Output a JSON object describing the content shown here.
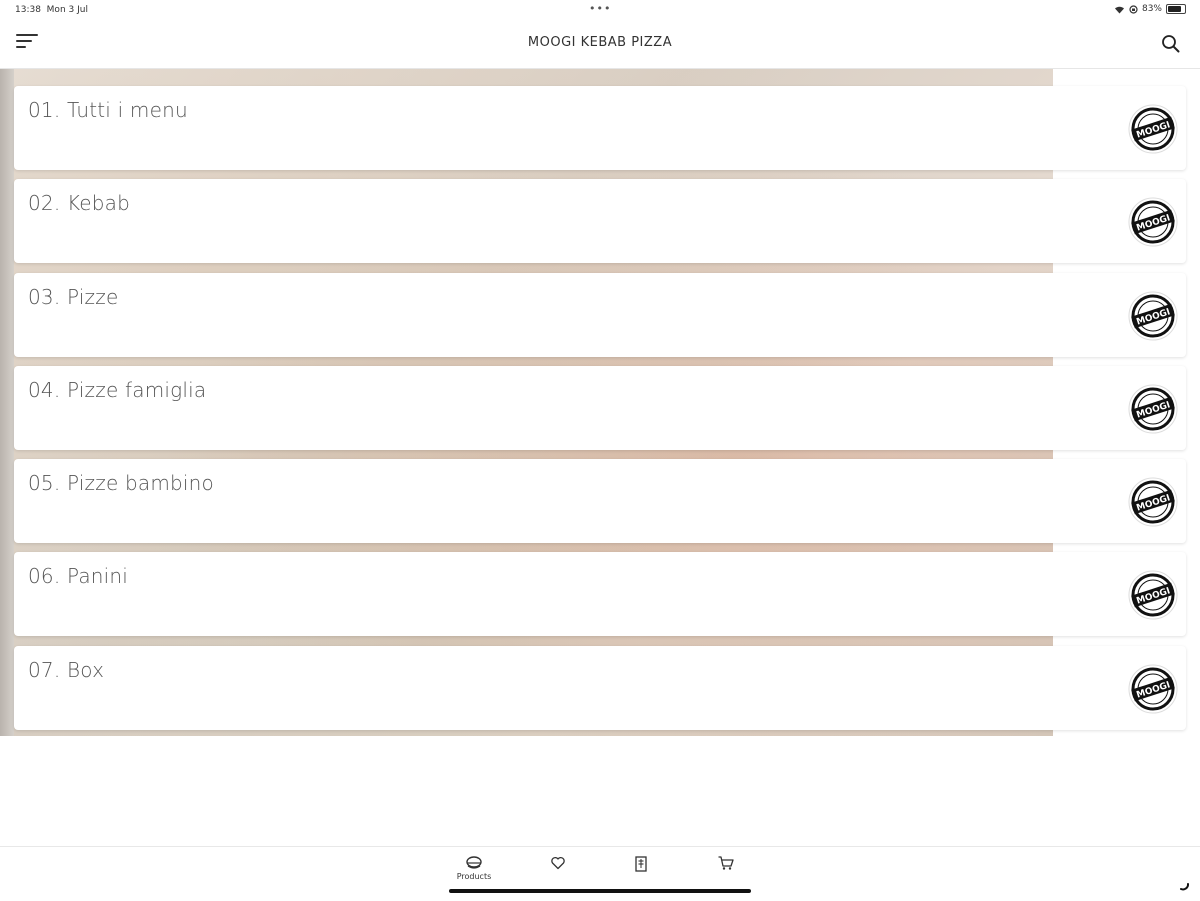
{
  "status": {
    "time": "13:38",
    "date": "Mon 3 Jul",
    "battery": "83%"
  },
  "header": {
    "title": "MOOGI KEBAB PIZZA"
  },
  "categories": [
    {
      "label": "01. Tutti i menu"
    },
    {
      "label": "02. Kebab"
    },
    {
      "label": "03. Pizze"
    },
    {
      "label": "04. Pizze famiglia"
    },
    {
      "label": "05. Pizze bambino"
    },
    {
      "label": "06. Panini"
    },
    {
      "label": "07. Box"
    }
  ],
  "logo": {
    "text": "MOOGI",
    "icon": "moogi-logo-icon"
  },
  "tabbar": {
    "products_label": "Products",
    "tabs": [
      "products-icon",
      "heart-icon",
      "receipt-icon",
      "cart-icon"
    ]
  },
  "colors": {
    "text": "#333333",
    "card_bg": "#ffffff",
    "indicator": "#111111"
  }
}
